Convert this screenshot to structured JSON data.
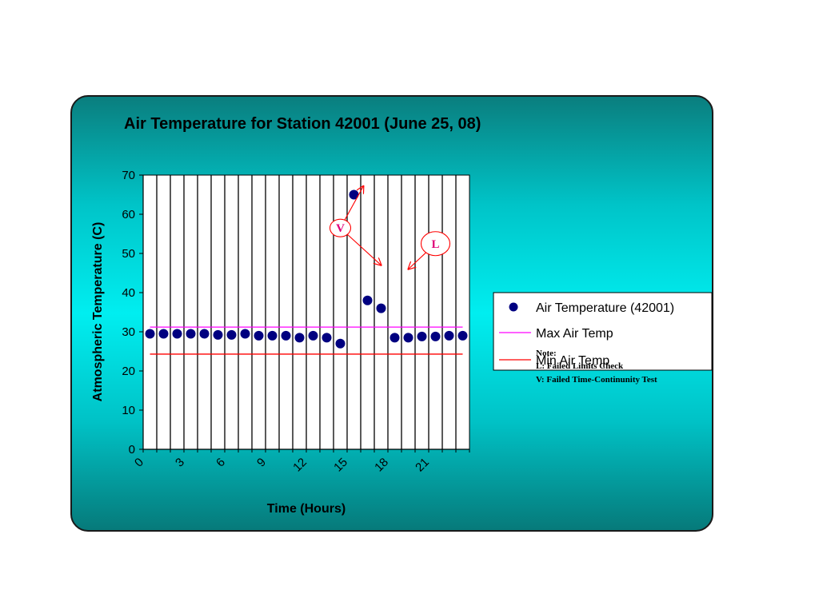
{
  "chart_data": {
    "type": "scatter",
    "title": "Air Temperature for Station 42001 (June 25,  08)",
    "xlabel": "Time (Hours)",
    "ylabel": "Atmospheric Temperature (C)",
    "xlim": [
      0,
      24
    ],
    "ylim": [
      0,
      70
    ],
    "x_ticks": [
      0,
      3,
      6,
      9,
      12,
      15,
      18,
      21
    ],
    "y_ticks": [
      0,
      10,
      20,
      30,
      40,
      50,
      60,
      70
    ],
    "grid": "vertical",
    "legend_position": "right",
    "series": [
      {
        "name": "Air Temperature (42001)",
        "type": "scatter",
        "color": "#000080",
        "x": [
          0.5,
          1.5,
          2.5,
          3.5,
          4.5,
          5.5,
          6.5,
          7.5,
          8.5,
          9.5,
          10.5,
          11.5,
          12.5,
          13.5,
          14.5,
          15.5,
          16.5,
          17.5,
          18.5,
          19.5,
          20.5,
          21.5,
          22.5,
          23.5
        ],
        "y": [
          29.5,
          29.5,
          29.5,
          29.5,
          29.5,
          29.2,
          29.2,
          29.5,
          29.0,
          29.0,
          29.0,
          28.5,
          29.0,
          28.5,
          27.0,
          65.0,
          38.0,
          36.0,
          28.5,
          28.5,
          28.8,
          28.8,
          29.0,
          29.0
        ]
      },
      {
        "name": "Max Air Temp",
        "type": "line",
        "color": "#ff00ff",
        "x": [
          0.5,
          23.5
        ],
        "y": [
          31.2,
          31.2
        ]
      },
      {
        "name": "Min Air Temp",
        "type": "line",
        "color": "#ff0000",
        "x": [
          0.5,
          23.5
        ],
        "y": [
          24.3,
          24.3
        ]
      }
    ],
    "annotations": [
      {
        "label": "V",
        "anchor": [
          14.5,
          56.5
        ],
        "arrows_to": [
          [
            16.2,
            67.2
          ],
          [
            17.5,
            47
          ]
        ]
      },
      {
        "label": "L",
        "anchor": [
          21.5,
          52.5
        ],
        "arrows_to": [
          [
            19.5,
            46
          ]
        ]
      }
    ],
    "note": {
      "heading": "Note:",
      "lines": [
        "L: Failed Limits Check",
        "V: Failed Time-Continunity Test"
      ]
    }
  }
}
